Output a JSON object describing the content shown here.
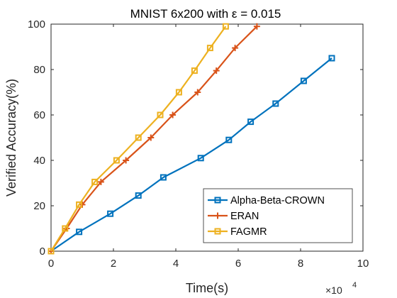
{
  "chart_data": {
    "type": "line",
    "title": "MNIST 6x200 with ε = 0.015",
    "xlabel": "Time(s)",
    "ylabel": "Verified Accuracy(%)",
    "x_exponent_label": "×10",
    "x_exponent_power": "4",
    "xlim": [
      0,
      10
    ],
    "ylim": [
      0,
      100
    ],
    "xticks": [
      "0",
      "2",
      "4",
      "6",
      "8",
      "10"
    ],
    "yticks": [
      "0",
      "20",
      "40",
      "60",
      "80",
      "100"
    ],
    "grid": false,
    "legend_position": "bottom-right",
    "series": [
      {
        "name": "Alpha-Beta-CROWN",
        "color": "#0072BD",
        "marker": "square",
        "x": [
          0,
          0.9,
          1.9,
          2.8,
          3.6,
          4.8,
          5.7,
          6.4,
          7.2,
          8.1,
          9.0
        ],
        "y": [
          0,
          8.5,
          16.5,
          24.5,
          32.5,
          41,
          49,
          57,
          65,
          75,
          85
        ]
      },
      {
        "name": "ERAN",
        "color": "#D95319",
        "marker": "plus",
        "x": [
          0,
          0.5,
          1.0,
          1.6,
          2.4,
          3.2,
          3.9,
          4.7,
          5.3,
          5.9,
          6.6
        ],
        "y": [
          0,
          10,
          20.5,
          30.5,
          40,
          50,
          60,
          70,
          79.5,
          89.5,
          99
        ]
      },
      {
        "name": "FAGMR",
        "color": "#EDB120",
        "marker": "square",
        "x": [
          0,
          0.45,
          0.9,
          1.4,
          2.1,
          2.8,
          3.5,
          4.1,
          4.6,
          5.1,
          5.6
        ],
        "y": [
          0,
          10,
          20.5,
          30.5,
          40,
          50,
          60,
          70,
          79.5,
          89.5,
          99
        ]
      }
    ]
  }
}
